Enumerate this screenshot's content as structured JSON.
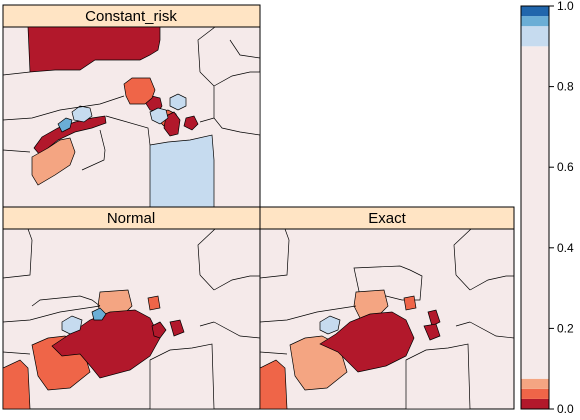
{
  "panels": [
    {
      "title": "Constant_risk",
      "regions": [
        {
          "id": "nw-block",
          "value": 0.02
        },
        {
          "id": "west-arc",
          "value": 0.0
        },
        {
          "id": "west-south",
          "value": 0.07
        },
        {
          "id": "center-red",
          "value": 0.0
        },
        {
          "id": "center-orange",
          "value": 0.04
        },
        {
          "id": "north-peak",
          "value": 0.04
        },
        {
          "id": "left-blue-dark",
          "value": 0.97
        },
        {
          "id": "left-blue",
          "value": 0.93
        },
        {
          "id": "mid-blue",
          "value": 0.93
        },
        {
          "id": "small-red",
          "value": 0.02
        },
        {
          "id": "tiny-red",
          "value": 0.0
        },
        {
          "id": "east-light-blue",
          "value": 0.9
        },
        {
          "id": "south-east-blue",
          "value": 0.93
        },
        {
          "id": "north-small-blue",
          "value": 0.93
        }
      ]
    },
    {
      "title": "Normal",
      "regions": [
        {
          "id": "west-big",
          "value": 0.03
        },
        {
          "id": "west-mid",
          "value": 0.05
        },
        {
          "id": "center-dark",
          "value": 0.0
        },
        {
          "id": "north-salmon",
          "value": 0.07
        },
        {
          "id": "left-blue",
          "value": 0.93
        },
        {
          "id": "left-blue-dark",
          "value": 0.97
        },
        {
          "id": "north-small",
          "value": 0.04
        },
        {
          "id": "small-red",
          "value": 0.0
        },
        {
          "id": "south-east-blue",
          "value": 0.9
        },
        {
          "id": "tiny-red",
          "value": 0.0
        }
      ]
    },
    {
      "title": "Exact",
      "regions": [
        {
          "id": "west-big",
          "value": 0.03
        },
        {
          "id": "west-mid",
          "value": 0.07
        },
        {
          "id": "center-dark",
          "value": 0.0
        },
        {
          "id": "north-blue",
          "value": 0.9
        },
        {
          "id": "north-salmon",
          "value": 0.07
        },
        {
          "id": "left-blue",
          "value": 0.93
        },
        {
          "id": "north-small",
          "value": 0.03
        },
        {
          "id": "small-red",
          "value": 0.02
        },
        {
          "id": "south-east-blue",
          "value": 0.9
        },
        {
          "id": "tiny-red",
          "value": 0.0
        }
      ]
    }
  ],
  "colorbar": {
    "ticks": [
      "0.0",
      "0.2",
      "0.4",
      "0.6",
      "0.8",
      "1.0"
    ],
    "tick_values": [
      0.0,
      0.2,
      0.4,
      0.6,
      0.8,
      1.0
    ],
    "range": [
      0,
      1
    ],
    "bands": [
      {
        "from": 0.0,
        "to": 0.025,
        "color": "#b2182b"
      },
      {
        "from": 0.025,
        "to": 0.05,
        "color": "#ef6548"
      },
      {
        "from": 0.05,
        "to": 0.075,
        "color": "#f4a582"
      },
      {
        "from": 0.075,
        "to": 0.9,
        "color": "#f5eaea"
      },
      {
        "from": 0.9,
        "to": 0.95,
        "color": "#c6dbef"
      },
      {
        "from": 0.95,
        "to": 0.975,
        "color": "#6baed6"
      },
      {
        "from": 0.975,
        "to": 1.0,
        "color": "#2166ac"
      }
    ]
  },
  "colors": {
    "strip": "#ffe4c4",
    "background": "#f5eaea",
    "border": "#000000"
  }
}
